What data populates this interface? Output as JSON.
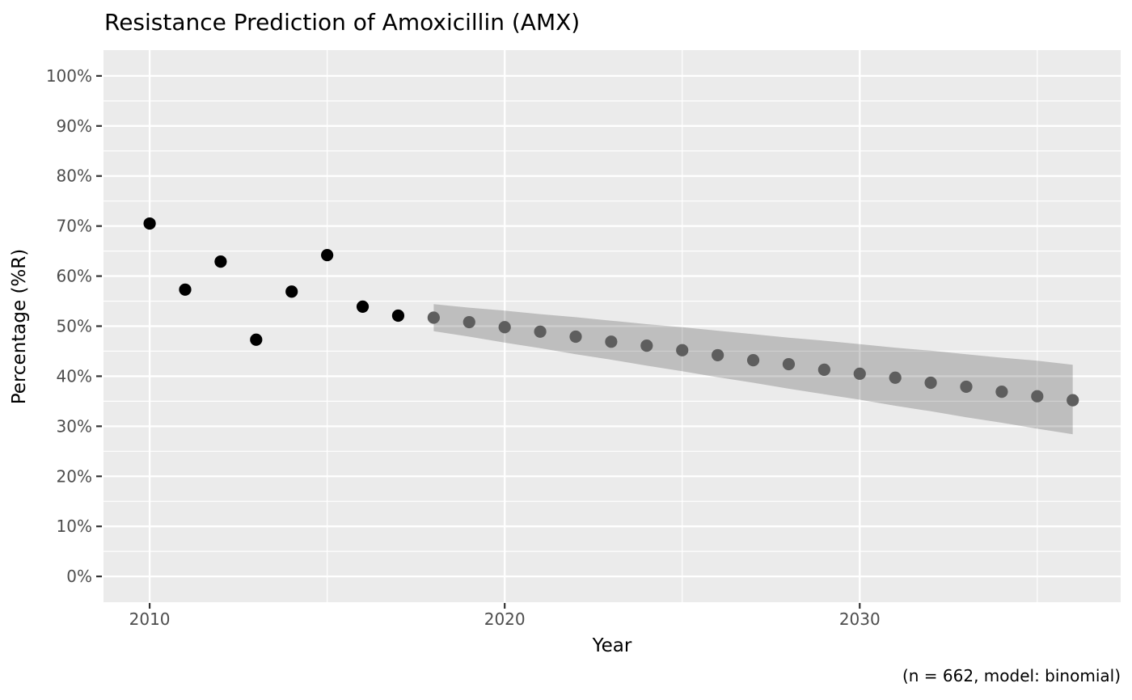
{
  "chart_data": {
    "type": "scatter",
    "title": "Resistance Prediction of Amoxicillin (AMX)",
    "xlabel": "Year",
    "ylabel": "Percentage (%R)",
    "caption": "(n = 662, model: binomial)",
    "legend": "none",
    "grid": true,
    "xlim": [
      2008.7,
      2037.35
    ],
    "ylim": [
      -5.15,
      105.15
    ],
    "x_ticks": [
      {
        "value": 2010,
        "label": "2010"
      },
      {
        "value": 2020,
        "label": "2020"
      },
      {
        "value": 2030,
        "label": "2030"
      }
    ],
    "x_minor_ticks": [
      2015,
      2025,
      2035
    ],
    "y_ticks": [
      {
        "value": 0,
        "label": "0%"
      },
      {
        "value": 10,
        "label": "10%"
      },
      {
        "value": 20,
        "label": "20%"
      },
      {
        "value": 30,
        "label": "30%"
      },
      {
        "value": 40,
        "label": "40%"
      },
      {
        "value": 50,
        "label": "50%"
      },
      {
        "value": 60,
        "label": "60%"
      },
      {
        "value": 70,
        "label": "70%"
      },
      {
        "value": 80,
        "label": "80%"
      },
      {
        "value": 90,
        "label": "90%"
      },
      {
        "value": 100,
        "label": "100%"
      }
    ],
    "y_minor_ticks": [
      5,
      15,
      25,
      35,
      45,
      55,
      65,
      75,
      85,
      95
    ],
    "point_radius": 7.6,
    "panel_background": "#ebebeb",
    "gridline_color": "#ffffff",
    "tick_label_color": "#4d4d4d",
    "tick_mark_color": "#333333",
    "series": [
      {
        "name": "observed",
        "type": "scatter",
        "color": "#000000",
        "points": [
          {
            "x": 2010,
            "y": 70.5
          },
          {
            "x": 2011,
            "y": 57.3
          },
          {
            "x": 2012,
            "y": 62.9
          },
          {
            "x": 2013,
            "y": 47.3
          },
          {
            "x": 2014,
            "y": 56.9
          },
          {
            "x": 2015,
            "y": 64.2
          },
          {
            "x": 2016,
            "y": 53.9
          },
          {
            "x": 2017,
            "y": 52.1
          }
        ]
      },
      {
        "name": "predicted",
        "type": "scatter_with_ci",
        "color": "#5e5e5e",
        "ribbon_color": "#000000",
        "ribbon_opacity": 0.19,
        "points": [
          {
            "x": 2018,
            "y": 51.7,
            "ci_low": 49.0,
            "ci_high": 54.4
          },
          {
            "x": 2019,
            "y": 50.8,
            "ci_low": 47.9,
            "ci_high": 53.7
          },
          {
            "x": 2020,
            "y": 49.8,
            "ci_low": 46.7,
            "ci_high": 53.1
          },
          {
            "x": 2021,
            "y": 48.9,
            "ci_low": 45.6,
            "ci_high": 52.4
          },
          {
            "x": 2022,
            "y": 47.9,
            "ci_low": 44.4,
            "ci_high": 51.8
          },
          {
            "x": 2023,
            "y": 46.9,
            "ci_low": 43.3,
            "ci_high": 51.1
          },
          {
            "x": 2024,
            "y": 46.1,
            "ci_low": 42.1,
            "ci_high": 50.4
          },
          {
            "x": 2025,
            "y": 45.2,
            "ci_low": 41.0,
            "ci_high": 49.8
          },
          {
            "x": 2026,
            "y": 44.2,
            "ci_low": 39.8,
            "ci_high": 49.1
          },
          {
            "x": 2027,
            "y": 43.2,
            "ci_low": 38.7,
            "ci_high": 48.4
          },
          {
            "x": 2028,
            "y": 42.4,
            "ci_low": 37.5,
            "ci_high": 47.7
          },
          {
            "x": 2029,
            "y": 41.3,
            "ci_low": 36.4,
            "ci_high": 47.1
          },
          {
            "x": 2030,
            "y": 40.5,
            "ci_low": 35.3,
            "ci_high": 46.4
          },
          {
            "x": 2031,
            "y": 39.7,
            "ci_low": 34.1,
            "ci_high": 45.7
          },
          {
            "x": 2032,
            "y": 38.7,
            "ci_low": 33.0,
            "ci_high": 45.1
          },
          {
            "x": 2033,
            "y": 37.9,
            "ci_low": 31.8,
            "ci_high": 44.4
          },
          {
            "x": 2034,
            "y": 36.9,
            "ci_low": 30.7,
            "ci_high": 43.7
          },
          {
            "x": 2035,
            "y": 36.0,
            "ci_low": 29.5,
            "ci_high": 43.1
          },
          {
            "x": 2036,
            "y": 35.2,
            "ci_low": 28.4,
            "ci_high": 42.3
          }
        ]
      }
    ]
  }
}
